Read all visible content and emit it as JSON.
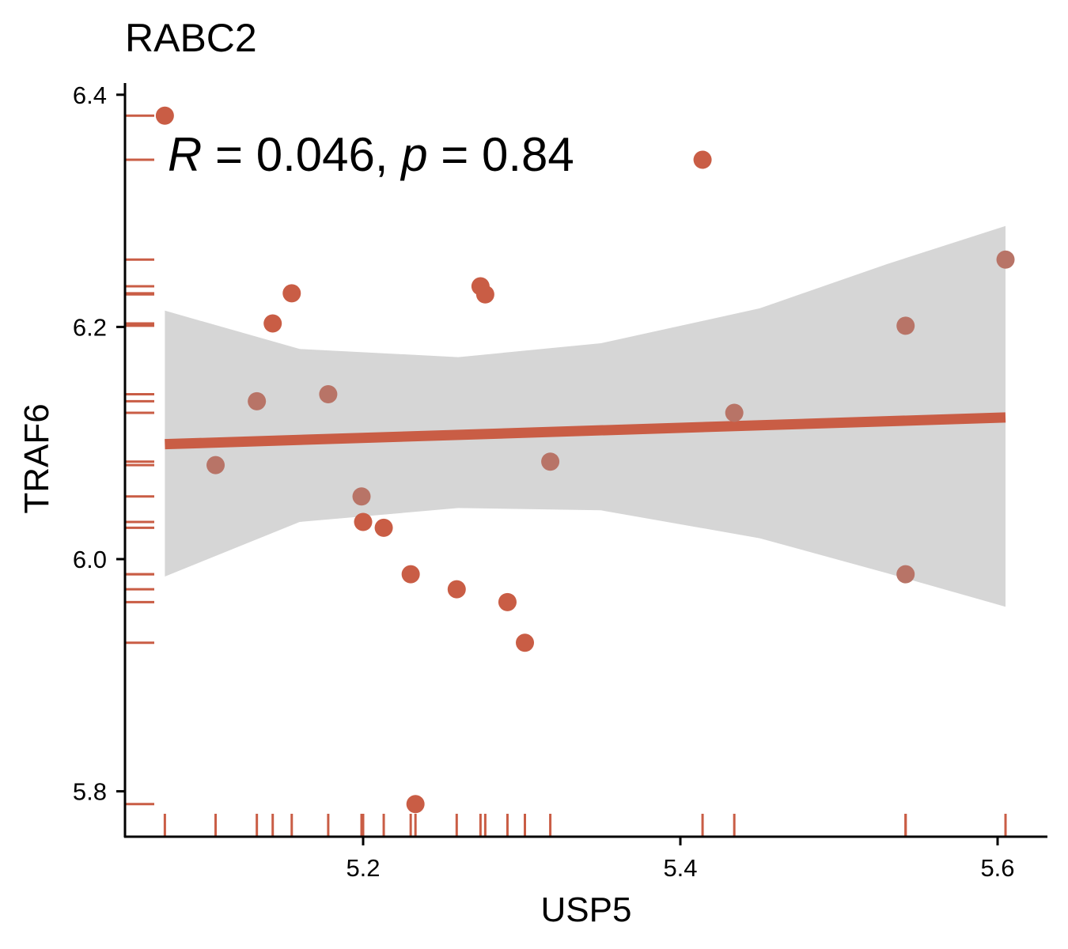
{
  "chart_data": {
    "type": "scatter",
    "title": "RABC2",
    "xlabel": "USP5",
    "ylabel": "TRAF6",
    "xlim": [
      5.05,
      5.63
    ],
    "ylim": [
      5.76,
      6.41
    ],
    "xticks": [
      5.2,
      5.4,
      5.6
    ],
    "xtick_labels": [
      "5.2",
      "5.4",
      "5.6"
    ],
    "yticks": [
      5.8,
      6.0,
      6.2,
      6.4
    ],
    "ytick_labels": [
      "5.8",
      "6.0",
      "6.2",
      "6.4"
    ],
    "annotation": {
      "r_label": "R",
      "r_text": " = 0.046, ",
      "p_label": "p",
      "p_text": " = 0.84"
    },
    "points": [
      {
        "x": 5.075,
        "y": 6.382
      },
      {
        "x": 5.107,
        "y": 6.081
      },
      {
        "x": 5.133,
        "y": 6.136
      },
      {
        "x": 5.143,
        "y": 6.203
      },
      {
        "x": 5.155,
        "y": 6.229
      },
      {
        "x": 5.178,
        "y": 6.142
      },
      {
        "x": 5.199,
        "y": 6.054
      },
      {
        "x": 5.2,
        "y": 6.032
      },
      {
        "x": 5.213,
        "y": 6.027
      },
      {
        "x": 5.23,
        "y": 5.987
      },
      {
        "x": 5.233,
        "y": 5.789
      },
      {
        "x": 5.259,
        "y": 5.974
      },
      {
        "x": 5.274,
        "y": 6.235
      },
      {
        "x": 5.277,
        "y": 6.228
      },
      {
        "x": 5.291,
        "y": 5.963
      },
      {
        "x": 5.302,
        "y": 5.928
      },
      {
        "x": 5.318,
        "y": 6.084
      },
      {
        "x": 5.414,
        "y": 6.344
      },
      {
        "x": 5.434,
        "y": 6.126
      },
      {
        "x": 5.542,
        "y": 6.201
      },
      {
        "x": 5.542,
        "y": 5.987
      },
      {
        "x": 5.605,
        "y": 6.258
      }
    ],
    "regression": {
      "x": [
        5.075,
        5.605
      ],
      "y": [
        6.099,
        6.122
      ]
    },
    "confidence_band": {
      "x": [
        5.075,
        5.16,
        5.26,
        5.35,
        5.45,
        5.53,
        5.605
      ],
      "upper": [
        6.214,
        6.181,
        6.174,
        6.186,
        6.216,
        6.254,
        6.287
      ],
      "lower": [
        5.985,
        6.032,
        6.044,
        6.042,
        6.018,
        5.988,
        5.959
      ]
    },
    "colors": {
      "point": "#c95d45",
      "point_in_band": "#b87467",
      "line": "#c95d45",
      "band": "#d6d6d6",
      "rug": "#c95d45",
      "axis": "#000000"
    }
  }
}
